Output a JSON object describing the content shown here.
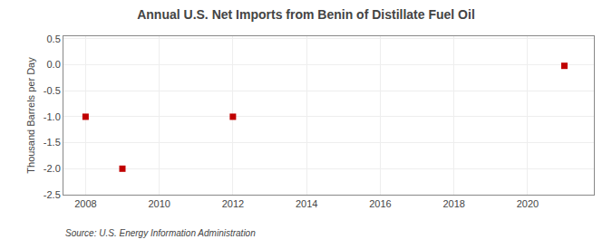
{
  "chart_data": {
    "type": "scatter",
    "title": "Annual U.S. Net Imports from Benin of Distillate Fuel Oil",
    "ylabel": "Thousand Barrels per Day",
    "source": "Source: U.S. Energy Information Administration",
    "x": [
      2008,
      2009,
      2012,
      2021
    ],
    "values": [
      -1.0,
      -2.0,
      -1.0,
      -0.02
    ],
    "color": "#c00000",
    "marker": "square",
    "xlim": [
      2007.4,
      2021.8
    ],
    "ylim": [
      -2.5,
      0.55
    ],
    "xticks": [
      2008,
      2010,
      2012,
      2014,
      2016,
      2018,
      2020
    ],
    "yticks": [
      0.5,
      {
        "value": 0.0,
        "label": "0.0"
      },
      -0.5,
      {
        "value": -1.0,
        "label": "-1.0"
      },
      -1.5,
      {
        "value": -2.0,
        "label": "-2.0"
      },
      -2.5
    ],
    "grid": true
  }
}
